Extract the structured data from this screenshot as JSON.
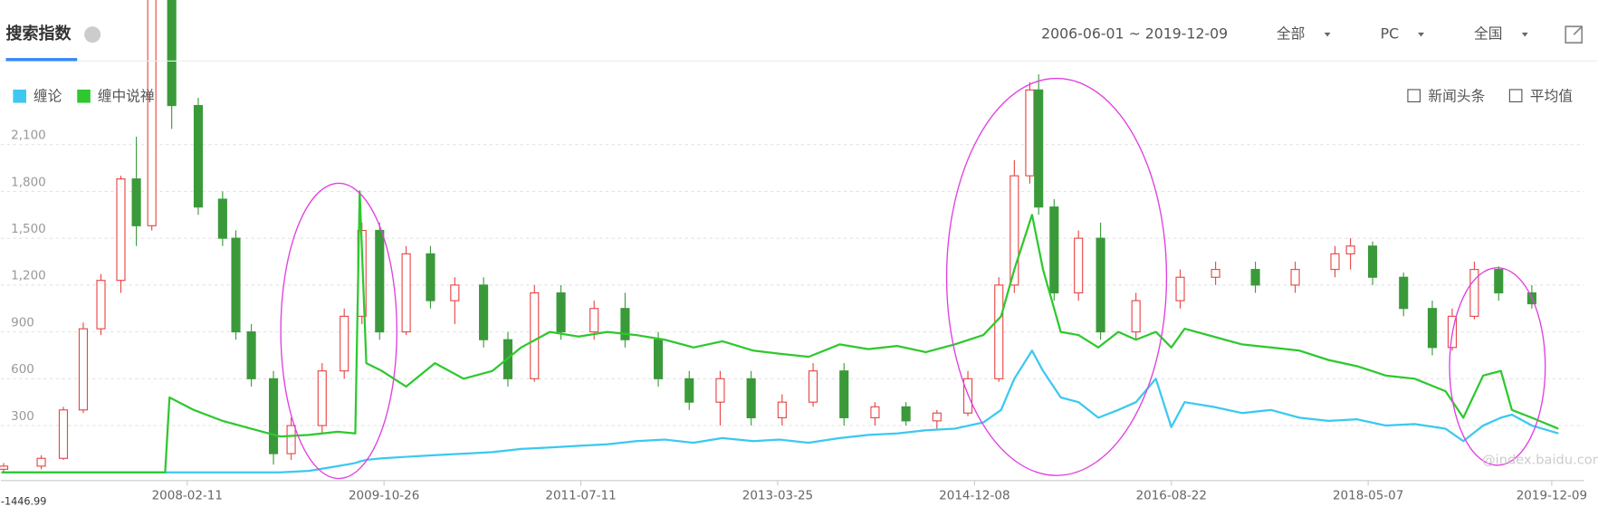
{
  "header": {
    "tab": "搜索指数",
    "date_range": "2006-06-01 ~ 2019-12-09",
    "filters": [
      "全部",
      "PC",
      "全国"
    ],
    "options": [
      "新闻头条",
      "平均值"
    ],
    "watermark": "@index.baidu.com"
  },
  "chart_data": {
    "type": "line",
    "x": [
      "2006-07-03",
      "2007-06-04",
      "2007-12-03",
      "2007-12-17",
      "2008-03-03",
      "2008-06-02",
      "2008-09-01",
      "2008-12-01",
      "2009-03-02",
      "2009-06-01",
      "2009-07-27",
      "2009-08-10",
      "2009-08-31",
      "2009-10-19",
      "2010-01-04",
      "2010-04-05",
      "2010-07-05",
      "2010-10-04",
      "2011-01-03",
      "2011-04-04",
      "2011-07-04",
      "2011-10-03",
      "2012-01-02",
      "2012-04-02",
      "2012-07-02",
      "2012-10-01",
      "2013-01-07",
      "2013-04-01",
      "2013-07-01",
      "2013-10-07",
      "2014-01-06",
      "2014-04-07",
      "2014-07-07",
      "2014-10-06",
      "2015-01-05",
      "2015-03-02",
      "2015-04-13",
      "2015-06-08",
      "2015-07-13",
      "2015-09-07",
      "2015-11-02",
      "2016-01-04",
      "2016-03-07",
      "2016-05-02",
      "2016-07-04",
      "2016-08-22",
      "2016-10-03",
      "2017-01-02",
      "2017-04-03",
      "2017-07-03",
      "2017-10-02",
      "2018-01-01",
      "2018-04-02",
      "2018-07-02",
      "2018-10-01",
      "2019-01-07",
      "2019-03-04",
      "2019-05-06",
      "2019-07-01",
      "2019-08-05",
      "2019-10-07",
      "2019-12-30"
    ],
    "series": [
      {
        "name": "缠论",
        "color": "#3cc8f0",
        "values": [
          0,
          0,
          0,
          0,
          0,
          0,
          0,
          0,
          10,
          40,
          60,
          70,
          80,
          90,
          100,
          110,
          120,
          130,
          150,
          160,
          170,
          180,
          200,
          210,
          190,
          220,
          200,
          210,
          190,
          220,
          240,
          250,
          270,
          280,
          320,
          400,
          600,
          780,
          650,
          480,
          450,
          350,
          400,
          450,
          600,
          290,
          450,
          420,
          380,
          400,
          350,
          330,
          340,
          300,
          310,
          280,
          200,
          300,
          350,
          370,
          300,
          250
        ]
      },
      {
        "name": "缠中说禅",
        "color": "#2ec82e",
        "values": [
          0,
          0,
          0,
          480,
          400,
          330,
          280,
          230,
          240,
          260,
          250,
          1800,
          700,
          650,
          550,
          700,
          600,
          650,
          800,
          900,
          870,
          900,
          880,
          850,
          800,
          840,
          780,
          760,
          740,
          820,
          790,
          810,
          770,
          820,
          880,
          1000,
          1300,
          1650,
          1300,
          900,
          880,
          800,
          900,
          850,
          900,
          800,
          920,
          870,
          820,
          800,
          780,
          720,
          680,
          620,
          600,
          520,
          350,
          620,
          650,
          400,
          350,
          280
        ]
      }
    ],
    "candlestick": {
      "up_color": "#e84545",
      "down_color": "#3a9a3a",
      "x": [
        "2006-07-10",
        "2006-11-06",
        "2007-01-15",
        "2007-03-19",
        "2007-05-14",
        "2007-07-16",
        "2007-09-03",
        "2007-10-22",
        "2007-12-24",
        "2008-03-17",
        "2008-06-02",
        "2008-07-14",
        "2008-09-01",
        "2008-11-10",
        "2009-01-05",
        "2009-04-13",
        "2009-06-22",
        "2009-08-17",
        "2009-10-12",
        "2010-01-04",
        "2010-03-22",
        "2010-06-07",
        "2010-09-06",
        "2010-11-22",
        "2011-02-14",
        "2011-05-09",
        "2011-08-22",
        "2011-11-28",
        "2012-03-12",
        "2012-06-18",
        "2012-09-24",
        "2012-12-31",
        "2013-04-08",
        "2013-07-15",
        "2013-10-21",
        "2014-01-27",
        "2014-05-05",
        "2014-08-11",
        "2014-11-17",
        "2015-02-23",
        "2015-04-13",
        "2015-06-01",
        "2015-06-29",
        "2015-08-17",
        "2015-11-02",
        "2016-01-11",
        "2016-05-02",
        "2016-09-19",
        "2017-01-09",
        "2017-05-15",
        "2017-09-18",
        "2018-01-22",
        "2018-03-12",
        "2018-05-21",
        "2018-08-27",
        "2018-11-26",
        "2019-01-28",
        "2019-04-08",
        "2019-06-24",
        "2019-10-07"
      ],
      "open": [
        20,
        40,
        90,
        400,
        920,
        1230,
        1880,
        1580,
        3050,
        2350,
        1750,
        1500,
        900,
        600,
        120,
        300,
        650,
        1000,
        1550,
        900,
        1400,
        1100,
        1200,
        850,
        600,
        1150,
        900,
        1050,
        850,
        600,
        450,
        600,
        350,
        450,
        650,
        350,
        420,
        330,
        380,
        600,
        1200,
        1900,
        2450,
        1700,
        1150,
        1500,
        900,
        1100,
        1250,
        1300,
        1200,
        1300,
        1400,
        1450,
        1250,
        1050,
        800,
        1000,
        1300,
        1150
      ],
      "high": [
        60,
        110,
        420,
        960,
        1270,
        1900,
        2150,
        3100,
        3200,
        2400,
        1800,
        1550,
        950,
        650,
        350,
        700,
        1050,
        1600,
        1600,
        1450,
        1450,
        1250,
        1250,
        900,
        1200,
        1200,
        1100,
        1150,
        900,
        650,
        650,
        650,
        500,
        700,
        700,
        450,
        450,
        400,
        650,
        1250,
        2000,
        2500,
        2550,
        1750,
        1550,
        1600,
        1150,
        1300,
        1350,
        1350,
        1350,
        1450,
        1500,
        1480,
        1280,
        1100,
        1050,
        1350,
        1320,
        1200
      ],
      "low": [
        0,
        20,
        80,
        380,
        880,
        1150,
        1450,
        1550,
        2200,
        1650,
        1450,
        850,
        550,
        50,
        80,
        250,
        600,
        950,
        850,
        880,
        1050,
        950,
        800,
        550,
        580,
        850,
        850,
        800,
        550,
        400,
        300,
        300,
        300,
        420,
        300,
        300,
        300,
        280,
        360,
        580,
        1150,
        1850,
        1650,
        1100,
        1100,
        850,
        850,
        1050,
        1200,
        1150,
        1150,
        1250,
        1300,
        1200,
        1000,
        750,
        780,
        980,
        1100,
        1050
      ],
      "close": [
        40,
        90,
        400,
        920,
        1230,
        1880,
        1580,
        3050,
        2350,
        1700,
        1500,
        900,
        600,
        120,
        300,
        650,
        1000,
        1550,
        900,
        1400,
        1100,
        1200,
        850,
        600,
        1150,
        900,
        1050,
        850,
        600,
        450,
        600,
        350,
        450,
        650,
        350,
        420,
        330,
        380,
        600,
        1200,
        1900,
        2450,
        1700,
        1150,
        1500,
        900,
        1100,
        1250,
        1300,
        1200,
        1300,
        1400,
        1450,
        1250,
        1050,
        800,
        1000,
        1300,
        1150,
        1080
      ]
    },
    "xlim": [
      "2006-07-01",
      "2020-03-20"
    ],
    "xticks": [
      "2008-02-11",
      "2009-10-26",
      "2011-07-11",
      "2013-03-25",
      "2014-12-08",
      "2016-08-22",
      "2018-05-07",
      "2019-12-09"
    ],
    "ylim": [
      0,
      3000
    ],
    "yticks": [
      300,
      600,
      900,
      {
        "value": 1200,
        "label": "1,200"
      },
      {
        "value": 1500,
        "label": "1,500"
      },
      {
        "value": 1800,
        "label": "1,800"
      },
      {
        "value": 2100,
        "label": "2,100"
      }
    ],
    "corner_label": "-1446.99",
    "grid": true
  }
}
